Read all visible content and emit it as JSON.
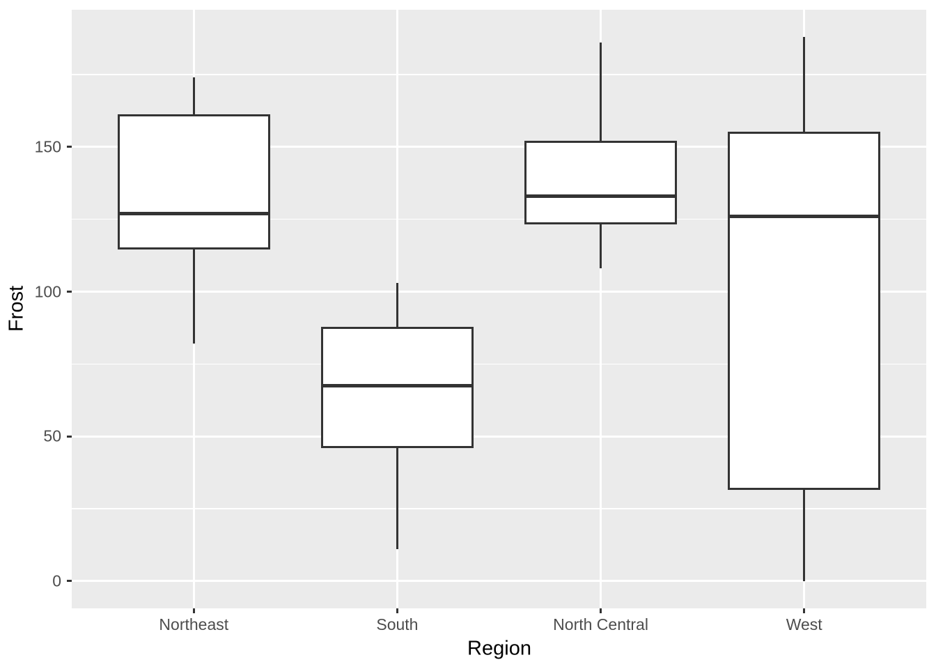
{
  "chart_data": {
    "type": "boxplot",
    "title": "",
    "xlabel": "Region",
    "ylabel": "Frost",
    "categories": [
      "Northeast",
      "South",
      "North Central",
      "West"
    ],
    "series": [
      {
        "name": "Frost",
        "boxes": [
          {
            "category": "Northeast",
            "min": 82,
            "q1": 115,
            "median": 127,
            "q3": 161,
            "max": 174,
            "outliers": []
          },
          {
            "category": "South",
            "min": 11,
            "q1": 46.25,
            "median": 67.5,
            "q3": 87.5,
            "max": 103,
            "outliers": []
          },
          {
            "category": "North Central",
            "min": 108,
            "q1": 123.5,
            "median": 133,
            "q3": 151.75,
            "max": 186,
            "outliers": []
          },
          {
            "category": "West",
            "min": 0,
            "q1": 32,
            "median": 126,
            "q3": 155,
            "max": 188,
            "outliers": []
          }
        ]
      }
    ],
    "ylim": [
      -9.4,
      197.4
    ],
    "yticks": [
      0,
      50,
      100,
      150
    ],
    "yticks_minor": [
      25,
      75,
      125,
      175
    ],
    "grid": "horizontal major+minor, vertical major at category centers",
    "legend": "none",
    "box_width_fraction": 0.75
  },
  "style": {
    "panel_background": "#EBEBEB",
    "gridline_color": "#FFFFFF",
    "box_border_color": "#333333",
    "box_fill_color": "#FFFFFF",
    "median_color": "#333333",
    "tick_mark_color": "#333333",
    "tick_label_color": "#4D4D4D",
    "axis_title_color": "#000000",
    "figure_background": "#FFFFFF"
  }
}
